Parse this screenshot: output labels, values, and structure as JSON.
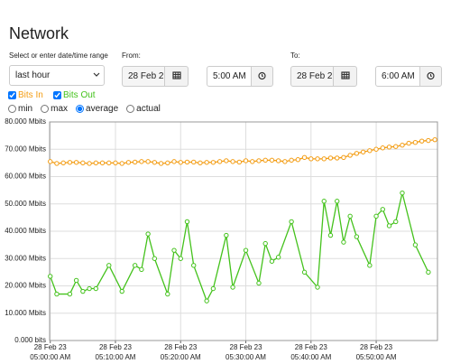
{
  "header": {
    "title": "Network"
  },
  "range": {
    "label": "Select or enter date/time range",
    "preset": "last hour"
  },
  "from": {
    "label": "From:",
    "date": "28 Feb 2",
    "time": "5:00 AM"
  },
  "to": {
    "label": "To:",
    "date": "28 Feb 2",
    "time": "6:00 AM"
  },
  "modes": [
    {
      "label": "min"
    },
    {
      "label": "max"
    },
    {
      "label": "average",
      "selected": true
    },
    {
      "label": "actual"
    }
  ],
  "chart_data": {
    "type": "line",
    "grid": true,
    "xlim": [
      -0.1,
      59.4
    ],
    "xticks": [
      {
        "value": 0,
        "label": "28 Feb 23\n05:00:00 AM"
      },
      {
        "value": 10,
        "label": "28 Feb 23\n05:10:00 AM"
      },
      {
        "value": 20,
        "label": "28 Feb 23\n05:20:00 AM"
      },
      {
        "value": 30,
        "label": "28 Feb 23\n05:30:00 AM"
      },
      {
        "value": 40,
        "label": "28 Feb 23\n05:40:00 AM"
      },
      {
        "value": 50,
        "label": "28 Feb 23\n05:50:00 AM"
      }
    ],
    "ylim": [
      0,
      80
    ],
    "yticks": [
      {
        "value": 0,
        "label": "0.000 bits"
      },
      {
        "value": 10,
        "label": "10.000 Mbits"
      },
      {
        "value": 20,
        "label": "20.000 Mbits"
      },
      {
        "value": 30,
        "label": "30.000 Mbits"
      },
      {
        "value": 40,
        "label": "40.000 Mbits"
      },
      {
        "value": 50,
        "label": "50.000 Mbits"
      },
      {
        "value": 60,
        "label": "60.000 Mbits"
      },
      {
        "value": 70,
        "label": "70.000 Mbits"
      },
      {
        "value": 80,
        "label": "80.000 Mbits"
      }
    ],
    "series": [
      {
        "name": "Bits In",
        "color": "#f39c12",
        "x": [
          0,
          1,
          2,
          3,
          4,
          5,
          6,
          7,
          8,
          9,
          10,
          11,
          12,
          13,
          14,
          15,
          16,
          17,
          18,
          19,
          20,
          21,
          22,
          23,
          24,
          25,
          26,
          27,
          28,
          29,
          30,
          31,
          32,
          33,
          34,
          35,
          36,
          37,
          38,
          39,
          40,
          41,
          42,
          43,
          44,
          45,
          46,
          47,
          48,
          49,
          50,
          51,
          52,
          53,
          54,
          55,
          56,
          57,
          58,
          59
        ],
        "values": [
          65.5,
          64.8,
          65,
          65.2,
          65.2,
          65,
          64.8,
          65,
          65,
          65,
          65,
          64.8,
          65.2,
          65.3,
          65.5,
          65.5,
          65.2,
          64.8,
          65,
          65.5,
          65.2,
          65.3,
          65.3,
          65,
          65.2,
          65.2,
          65.5,
          65.8,
          65.5,
          65.3,
          65.8,
          65.5,
          65.8,
          66,
          66,
          65.8,
          65.5,
          66,
          66.2,
          67,
          66.5,
          66.5,
          66.5,
          66.8,
          66.8,
          67,
          67.8,
          68.5,
          69,
          69.5,
          70,
          70.5,
          70.8,
          71,
          71.5,
          72.2,
          72.5,
          73,
          73.2,
          73.5
        ]
      },
      {
        "name": "Bits Out",
        "color": "#44c21c",
        "x": [
          0,
          1,
          3,
          4,
          5,
          6,
          7,
          9,
          11,
          13,
          14,
          15,
          16,
          18,
          19,
          20,
          21,
          22,
          24,
          25,
          27,
          28,
          30,
          32,
          33,
          34,
          35,
          37,
          39,
          41,
          42,
          43,
          44,
          45,
          46,
          47,
          49,
          50,
          51,
          52,
          53,
          54,
          56,
          58
        ],
        "values": [
          23.5,
          17,
          17,
          22,
          18,
          19,
          19,
          27.5,
          18,
          27.5,
          26,
          39,
          30,
          17,
          33,
          30,
          43.5,
          27.5,
          14.5,
          19,
          38.5,
          19.5,
          33,
          21,
          35.5,
          29,
          30.5,
          43.5,
          25,
          19.5,
          51,
          38.5,
          51,
          36,
          45.5,
          38,
          27.5,
          45.5,
          48,
          42,
          43.5,
          54,
          35,
          25
        ]
      }
    ]
  }
}
